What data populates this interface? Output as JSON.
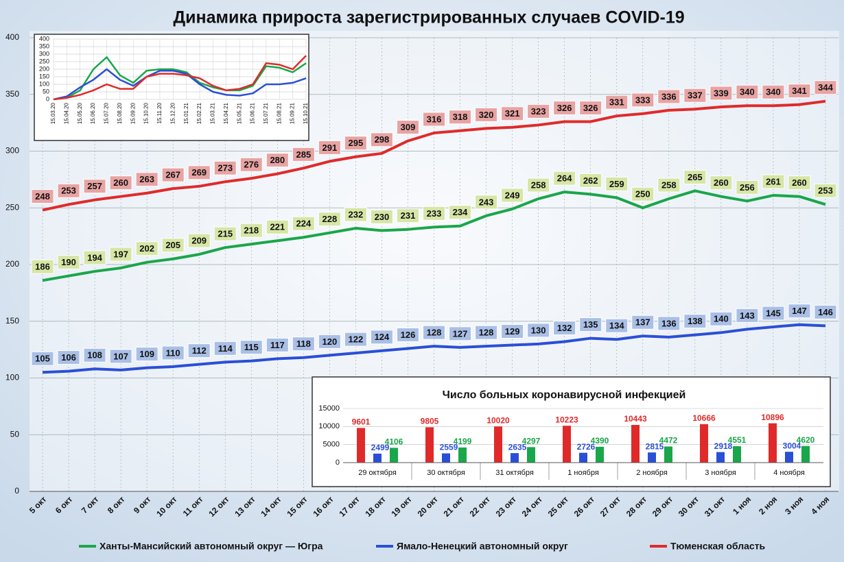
{
  "chart_data": [
    {
      "type": "line",
      "title": "Динамика прироста зарегистрированных случаев COVID-19",
      "categories": [
        "5 окт",
        "6 окт",
        "7 окт",
        "8 окт",
        "9 окт",
        "10 окт",
        "11 окт",
        "12 окт",
        "13 окт",
        "14 окт",
        "15 окт",
        "16 окт",
        "17 окт",
        "18 окт",
        "19 окт",
        "20 окт",
        "21 окт",
        "22 окт",
        "23 окт",
        "24 окт",
        "25 окт",
        "26 окт",
        "27 окт",
        "28 окт",
        "29 окт",
        "30 окт",
        "31 окт",
        "1 ноя",
        "2 ноя",
        "3 ноя",
        "4 ноя"
      ],
      "series": [
        {
          "name": "Ханты-Мансийский автономный округ — Югра",
          "color": "#1aa64a",
          "label_color": "#d6e6a6",
          "values": [
            186,
            190,
            194,
            197,
            202,
            205,
            209,
            215,
            218,
            221,
            224,
            228,
            232,
            230,
            231,
            233,
            234,
            243,
            249,
            258,
            264,
            262,
            259,
            250,
            258,
            265,
            260,
            256,
            261,
            260,
            253
          ]
        },
        {
          "name": "Ямало-Ненецкий автономный округ",
          "color": "#2a4fd6",
          "label_color": "#a9bfe6",
          "values": [
            105,
            106,
            108,
            107,
            109,
            110,
            112,
            114,
            115,
            117,
            118,
            120,
            122,
            124,
            126,
            128,
            127,
            128,
            129,
            130,
            132,
            135,
            134,
            137,
            136,
            138,
            140,
            143,
            145,
            147,
            146
          ]
        },
        {
          "name": "Тюменская область",
          "color": "#e02a2a",
          "label_color": "#e8a3a3",
          "values": [
            248,
            253,
            257,
            260,
            263,
            267,
            269,
            273,
            276,
            280,
            285,
            291,
            295,
            298,
            309,
            316,
            318,
            320,
            321,
            323,
            326,
            326,
            331,
            333,
            336,
            337,
            339,
            340,
            340,
            341,
            344
          ]
        }
      ],
      "ylim": [
        0,
        400
      ],
      "yticks": [
        0,
        50,
        100,
        150,
        200,
        250,
        300,
        350,
        400
      ],
      "grid": true,
      "legend": "bottom"
    },
    {
      "type": "line",
      "categories": [
        "15.03.20",
        "15.04.20",
        "15.05.20",
        "15.06.20",
        "15.07.20",
        "15.08.20",
        "15.09.20",
        "15.10.20",
        "15.11.20",
        "15.12.20",
        "15.01.21",
        "15.02.21",
        "15.03.21",
        "15.04.21",
        "15.05.21",
        "15.06.21",
        "15.07.21",
        "15.08.21",
        "15.09.21",
        "15.10.21"
      ],
      "series": [
        {
          "color": "#1aa64a",
          "values": [
            0,
            10,
            60,
            200,
            280,
            160,
            110,
            190,
            200,
            200,
            180,
            110,
            80,
            60,
            60,
            90,
            220,
            210,
            180,
            240
          ]
        },
        {
          "color": "#2a4fd6",
          "values": [
            0,
            20,
            80,
            130,
            200,
            130,
            90,
            150,
            190,
            190,
            170,
            100,
            50,
            30,
            25,
            40,
            100,
            100,
            110,
            140
          ]
        },
        {
          "color": "#e02a2a",
          "values": [
            0,
            10,
            30,
            60,
            100,
            70,
            70,
            150,
            170,
            170,
            160,
            140,
            90,
            60,
            70,
            100,
            240,
            230,
            200,
            290
          ]
        }
      ],
      "ylim": [
        0,
        400
      ],
      "yticks": [
        0,
        50,
        100,
        150,
        200,
        250,
        300,
        350,
        400
      ],
      "grid": true
    },
    {
      "type": "bar",
      "title": "Число больных  коронавирусной  инфекцией",
      "categories": [
        "29 октября",
        "30 октября",
        "31 октября",
        "1 ноября",
        "2 ноября",
        "3 ноября",
        "4 ноября"
      ],
      "series": [
        {
          "color": "#e02a2a",
          "values": [
            9601,
            9805,
            10020,
            10223,
            10443,
            10666,
            10896
          ]
        },
        {
          "color": "#2a4fd6",
          "values": [
            2499,
            2559,
            2635,
            2726,
            2815,
            2918,
            3004
          ]
        },
        {
          "color": "#1aa64a",
          "values": [
            4106,
            4199,
            4297,
            4390,
            4472,
            4551,
            4620
          ]
        }
      ],
      "ylim": [
        0,
        15000
      ],
      "yticks": [
        0,
        5000,
        10000,
        15000
      ],
      "grid": true
    }
  ]
}
